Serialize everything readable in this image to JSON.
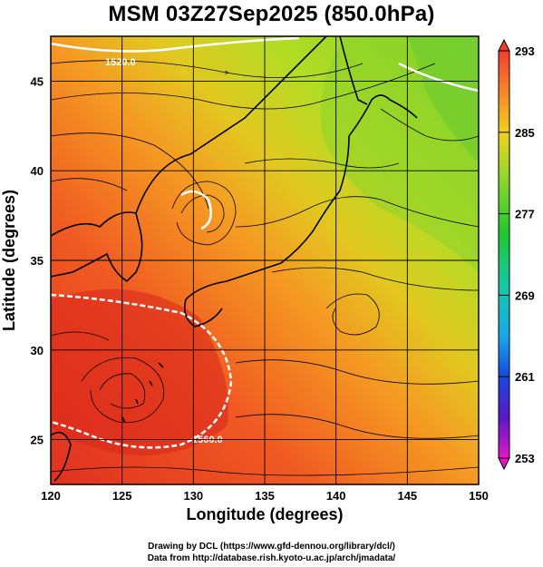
{
  "title": "MSM 03Z27Sep2025 (850.0hPa)",
  "x_axis": {
    "label": "Longitude (degrees)",
    "range": [
      120,
      150
    ],
    "ticks": [
      120,
      125,
      130,
      135,
      140,
      145,
      150
    ]
  },
  "y_axis": {
    "label": "Latitude  (degrees)",
    "range": [
      22.5,
      47.5
    ],
    "ticks": [
      25,
      30,
      35,
      40,
      45
    ]
  },
  "colorbar": {
    "range": [
      253,
      293
    ],
    "labels": [
      293,
      285,
      277,
      269,
      261,
      253
    ]
  },
  "contours": [
    {
      "label": "1520.0"
    },
    {
      "label": "1560.0"
    }
  ],
  "colors": {
    "warm": "#e8442a",
    "mid": "#f5a623",
    "cool": "#8fd62a",
    "contour": "#ffffff",
    "streamline": "#000000"
  },
  "credits": {
    "line1": "Drawing by DCL (https://www.gfd-dennou.org/library/dcl/)",
    "line2": "Data from http://database.rish.kyoto-u.ac.jp/arch/jmadata/"
  }
}
